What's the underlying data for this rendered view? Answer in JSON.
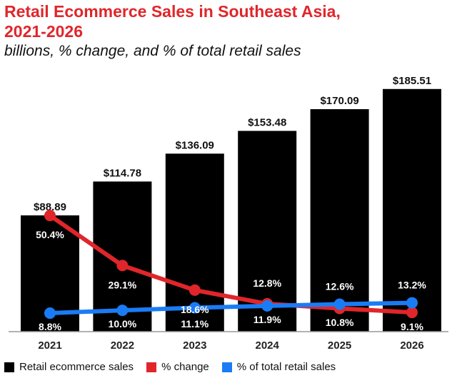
{
  "chart_data": {
    "type": "bar",
    "title_line1": "Retail Ecommerce Sales in Southeast Asia,",
    "title_line2": "2021-2026",
    "subtitle": "billions, % change, and % of total retail sales",
    "categories": [
      "2021",
      "2022",
      "2023",
      "2024",
      "2025",
      "2026"
    ],
    "series": [
      {
        "name": "Retail ecommerce sales",
        "type": "bar",
        "color": "#000000",
        "values": [
          88.89,
          114.78,
          136.09,
          153.48,
          170.09,
          185.51
        ],
        "labels": [
          "$88.89",
          "$114.78",
          "$136.09",
          "$153.48",
          "$170.09",
          "$185.51"
        ]
      },
      {
        "name": "% change",
        "type": "line",
        "color": "#e0262b",
        "values": [
          50.4,
          29.1,
          18.6,
          12.8,
          10.8,
          9.1
        ],
        "labels": [
          "50.4%",
          "29.1%",
          "18.6%",
          "12.8%",
          "10.8%",
          "9.1%"
        ]
      },
      {
        "name": "% of total retail sales",
        "type": "line",
        "color": "#1a7cf5",
        "values": [
          8.8,
          10.0,
          11.1,
          11.9,
          12.6,
          13.2
        ],
        "labels": [
          "8.8%",
          "10.0%",
          "11.1%",
          "11.9%",
          "12.6%",
          "13.2%"
        ]
      }
    ],
    "ylim": [
      0,
      200
    ],
    "pct_ylim": [
      0,
      55
    ],
    "grid": false,
    "legend_position": "bottom"
  }
}
